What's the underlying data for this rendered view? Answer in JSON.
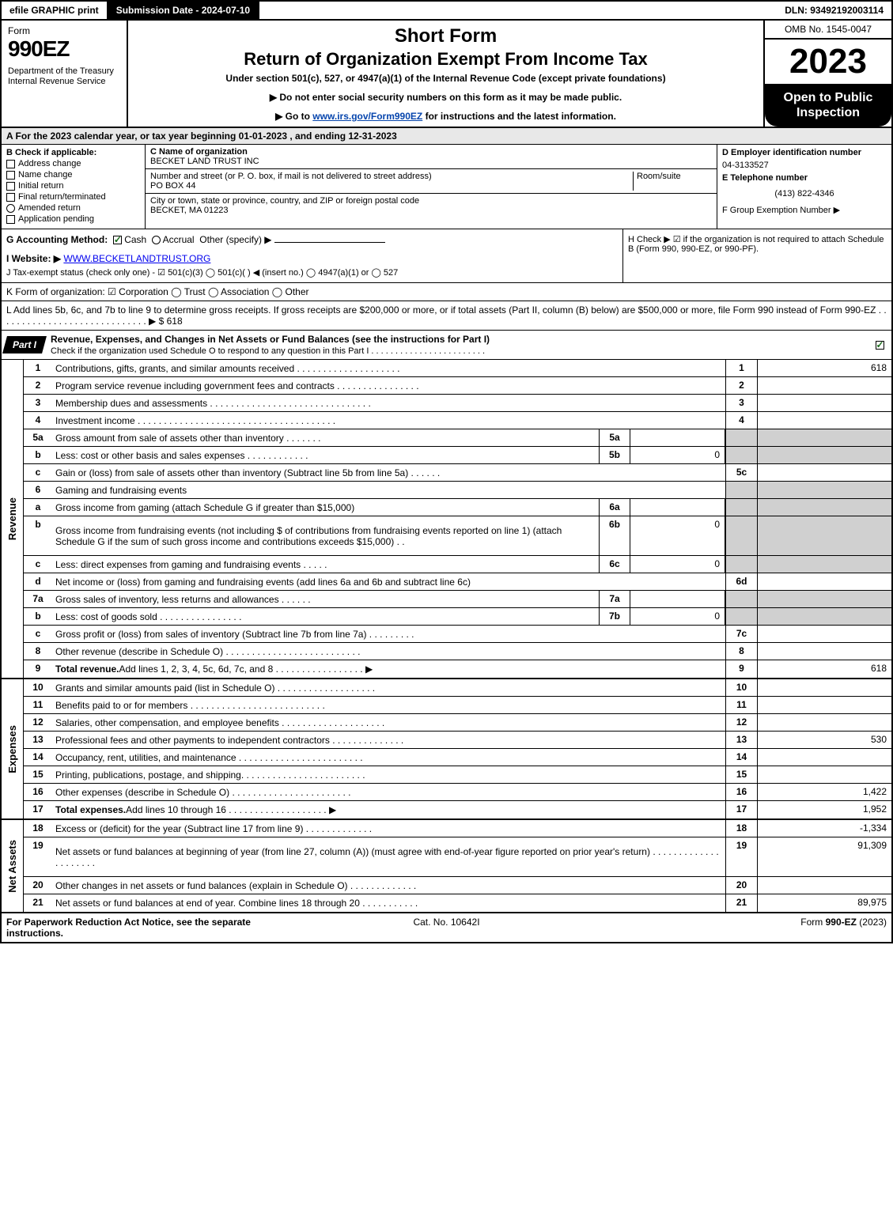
{
  "top": {
    "efile": "efile GRAPHIC print",
    "submission": "Submission Date - 2024-07-10",
    "dln": "DLN: 93492192003114"
  },
  "header": {
    "form_label": "Form",
    "form_code": "990EZ",
    "dept": "Department of the Treasury\nInternal Revenue Service",
    "short_form": "Short Form",
    "return_title": "Return of Organization Exempt From Income Tax",
    "under_section": "Under section 501(c), 527, or 4947(a)(1) of the Internal Revenue Code (except private foundations)",
    "notice_ssn": "▶ Do not enter social security numbers on this form as it may be made public.",
    "notice_goto_pre": "▶ Go to ",
    "notice_goto_link": "www.irs.gov/Form990EZ",
    "notice_goto_post": " for instructions and the latest information.",
    "omb": "OMB No. 1545-0047",
    "year": "2023",
    "open_public": "Open to Public Inspection"
  },
  "A": "A  For the 2023 calendar year, or tax year beginning 01-01-2023 , and ending 12-31-2023",
  "B": {
    "label": "B  Check if applicable:",
    "items": [
      "Address change",
      "Name change",
      "Initial return",
      "Final return/terminated",
      "Amended return",
      "Application pending"
    ]
  },
  "C": {
    "name_label": "C Name of organization",
    "name": "BECKET LAND TRUST INC",
    "street_label": "Number and street (or P. O. box, if mail is not delivered to street address)",
    "room_label": "Room/suite",
    "street": "PO BOX 44",
    "city_label": "City or town, state or province, country, and ZIP or foreign postal code",
    "city": "BECKET, MA  01223"
  },
  "D": {
    "ein_label": "D Employer identification number",
    "ein": "04-3133527",
    "tel_label": "E Telephone number",
    "tel": "(413) 822-4346",
    "grp_label": "F Group Exemption Number    ▶"
  },
  "G": {
    "label": "G Accounting Method:",
    "cash": "Cash",
    "accrual": "Accrual",
    "other": "Other (specify) ▶"
  },
  "H": "H   Check ▶  ☑  if the organization is not required to attach Schedule B (Form 990, 990-EZ, or 990-PF).",
  "I_label": "I Website: ▶",
  "I_site": "WWW.BECKETLANDTRUST.ORG",
  "J": "J Tax-exempt status (check only one) -  ☑ 501(c)(3)  ◯ 501(c)(  ) ◀ (insert no.)  ◯ 4947(a)(1) or  ◯ 527",
  "K": "K Form of organization:   ☑ Corporation   ◯ Trust   ◯ Association   ◯ Other",
  "L": "L Add lines 5b, 6c, and 7b to line 9 to determine gross receipts. If gross receipts are $200,000 or more, or if total assets (Part II, column (B) below) are $500,000 or more, file Form 990 instead of Form 990-EZ  .  .  .  .  .  .  .  .  .  .  .  .  .  .  .  .  .  .  .  .  .  .  .  .  .  .  .  .  .  ▶ $ 618",
  "part1": {
    "label": "Part I",
    "title": "Revenue, Expenses, and Changes in Net Assets or Fund Balances (see the instructions for Part I)",
    "subtitle": "Check if the organization used Schedule O to respond to any question in this Part I  .  .  .  .  .  .  .  .  .  .  .  .  .  .  .  .  .  .  .  .  .  .  .  ."
  },
  "sections": {
    "revenue": "Revenue",
    "expenses": "Expenses",
    "netassets": "Net Assets"
  },
  "rows": [
    {
      "n": "1",
      "desc": "Contributions, gifts, grants, and similar amounts received  .  .  .  .  .  .  .  .  .  .  .  .  .  .  .  .  .  .  .  .",
      "rn": "1",
      "val": "618"
    },
    {
      "n": "2",
      "desc": "Program service revenue including government fees and contracts  .  .  .  .  .  .  .  .  .  .  .  .  .  .  .  .",
      "rn": "2",
      "val": ""
    },
    {
      "n": "3",
      "desc": "Membership dues and assessments  .  .  .  .  .  .  .  .  .  .  .  .  .  .  .  .  .  .  .  .  .  .  .  .  .  .  .  .  .  .  .",
      "rn": "3",
      "val": ""
    },
    {
      "n": "4",
      "desc": "Investment income  .  .  .  .  .  .  .  .  .  .  .  .  .  .  .  .  .  .  .  .  .  .  .  .  .  .  .  .  .  .  .  .  .  .  .  .  .  .",
      "rn": "4",
      "val": ""
    },
    {
      "n": "5a",
      "desc": "Gross amount from sale of assets other than inventory  .  .  .  .  .  .  .",
      "sub": "5a",
      "subval": "",
      "shade": true
    },
    {
      "n": "b",
      "desc": "Less: cost or other basis and sales expenses  .  .  .  .  .  .  .  .  .  .  .  .",
      "sub": "5b",
      "subval": "0",
      "shade": true
    },
    {
      "n": "c",
      "desc": "Gain or (loss) from sale of assets other than inventory (Subtract line 5b from line 5a)  .  .  .  .  .  .",
      "rn": "5c",
      "val": ""
    },
    {
      "n": "6",
      "desc": "Gaming and fundraising events",
      "shade": true,
      "noval": true
    },
    {
      "n": "a",
      "desc": "Gross income from gaming (attach Schedule G if greater than $15,000)",
      "sub": "6a",
      "subval": "",
      "shade": true
    },
    {
      "n": "b",
      "desc": "Gross income from fundraising events (not including $                         of contributions from fundraising events reported on line 1) (attach Schedule G if the sum of such gross income and contributions exceeds $15,000)     .   .",
      "sub": "6b",
      "subval": "0",
      "shade": true,
      "tall": true
    },
    {
      "n": "c",
      "desc": "Less: direct expenses from gaming and fundraising events  .  .  .  .  .",
      "sub": "6c",
      "subval": "0",
      "shade": true
    },
    {
      "n": "d",
      "desc": "Net income or (loss) from gaming and fundraising events (add lines 6a and 6b and subtract line 6c)",
      "rn": "6d",
      "val": ""
    },
    {
      "n": "7a",
      "desc": "Gross sales of inventory, less returns and allowances  .  .  .  .  .  .",
      "sub": "7a",
      "subval": "",
      "shade": true
    },
    {
      "n": "b",
      "desc": "Less: cost of goods sold         .  .  .  .  .  .  .  .  .  .  .  .  .  .  .  .",
      "sub": "7b",
      "subval": "0",
      "shade": true
    },
    {
      "n": "c",
      "desc": "Gross profit or (loss) from sales of inventory (Subtract line 7b from line 7a)  .  .  .  .  .  .  .  .  .",
      "rn": "7c",
      "val": ""
    },
    {
      "n": "8",
      "desc": "Other revenue (describe in Schedule O)  .  .  .  .  .  .  .  .  .  .  .  .  .  .  .  .  .  .  .  .  .  .  .  .  .  .",
      "rn": "8",
      "val": ""
    },
    {
      "n": "9",
      "desc": "Total revenue. Add lines 1, 2, 3, 4, 5c, 6d, 7c, and 8   .  .  .  .  .  .  .  .  .  .  .  .  .  .  .  .  .  ▶",
      "rn": "9",
      "val": "618",
      "bold": true
    }
  ],
  "exp_rows": [
    {
      "n": "10",
      "desc": "Grants and similar amounts paid (list in Schedule O)  .  .  .  .  .  .  .  .  .  .  .  .  .  .  .  .  .  .  .",
      "rn": "10",
      "val": ""
    },
    {
      "n": "11",
      "desc": "Benefits paid to or for members       .  .  .  .  .  .  .  .  .  .  .  .  .  .  .  .  .  .  .  .  .  .  .  .  .  .",
      "rn": "11",
      "val": ""
    },
    {
      "n": "12",
      "desc": "Salaries, other compensation, and employee benefits .  .  .  .  .  .  .  .  .  .  .  .  .  .  .  .  .  .  .  .",
      "rn": "12",
      "val": ""
    },
    {
      "n": "13",
      "desc": "Professional fees and other payments to independent contractors  .  .  .  .  .  .  .  .  .  .  .  .  .  .",
      "rn": "13",
      "val": "530"
    },
    {
      "n": "14",
      "desc": "Occupancy, rent, utilities, and maintenance .  .  .  .  .  .  .  .  .  .  .  .  .  .  .  .  .  .  .  .  .  .  .  .",
      "rn": "14",
      "val": ""
    },
    {
      "n": "15",
      "desc": "Printing, publications, postage, and shipping.  .  .  .  .  .  .  .  .  .  .  .  .  .  .  .  .  .  .  .  .  .  .  .",
      "rn": "15",
      "val": ""
    },
    {
      "n": "16",
      "desc": "Other expenses (describe in Schedule O)     .  .  .  .  .  .  .  .  .  .  .  .  .  .  .  .  .  .  .  .  .  .  .",
      "rn": "16",
      "val": "1,422"
    },
    {
      "n": "17",
      "desc": "Total expenses. Add lines 10 through 16      .  .  .  .  .  .  .  .  .  .  .  .  .  .  .  .  .  .  .  ▶",
      "rn": "17",
      "val": "1,952",
      "bold": true
    }
  ],
  "net_rows": [
    {
      "n": "18",
      "desc": "Excess or (deficit) for the year (Subtract line 17 from line 9)         .  .  .  .  .  .  .  .  .  .  .  .  .",
      "rn": "18",
      "val": "-1,334"
    },
    {
      "n": "19",
      "desc": "Net assets or fund balances at beginning of year (from line 27, column (A)) (must agree with end-of-year figure reported on prior year's return) .  .  .  .  .  .  .  .  .  .  .  .  .  .  .  .  .  .  .  .  .",
      "rn": "19",
      "val": "91,309",
      "tall": true
    },
    {
      "n": "20",
      "desc": "Other changes in net assets or fund balances (explain in Schedule O) .  .  .  .  .  .  .  .  .  .  .  .  .",
      "rn": "20",
      "val": ""
    },
    {
      "n": "21",
      "desc": "Net assets or fund balances at end of year. Combine lines 18 through 20 .  .  .  .  .  .  .  .  .  .  .",
      "rn": "21",
      "val": "89,975"
    }
  ],
  "footer": {
    "left": "For Paperwork Reduction Act Notice, see the separate instructions.",
    "mid": "Cat. No. 10642I",
    "right_pre": "Form ",
    "right_bold": "990-EZ",
    "right_post": " (2023)"
  }
}
